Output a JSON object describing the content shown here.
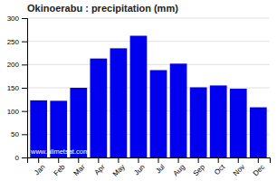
{
  "chart_data": {
    "type": "bar",
    "title": "Okinoerabu : precipitation (mm)",
    "categories": [
      "Jan",
      "Feb",
      "Mar",
      "Apr",
      "May",
      "Jun",
      "Jul",
      "Aug",
      "Sep",
      "Oct",
      "Nov",
      "Dec"
    ],
    "values": [
      123,
      122,
      150,
      213,
      235,
      262,
      188,
      202,
      151,
      155,
      148,
      108
    ],
    "color": "#0000ee",
    "ylim": [
      0,
      300
    ],
    "yticks": [
      0,
      50,
      100,
      150,
      200,
      250,
      300
    ],
    "grid": true,
    "annotations": [
      "www.allmetsat.com"
    ]
  }
}
